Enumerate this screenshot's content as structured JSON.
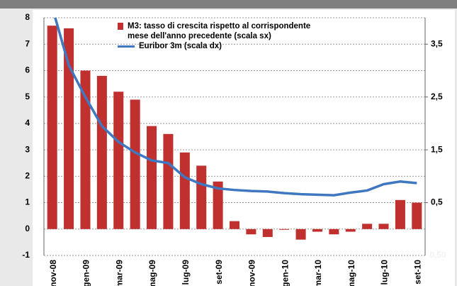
{
  "chart_data": {
    "type": "bar-line",
    "categories": [
      "nov-08",
      null,
      "gen-09",
      null,
      "mar-09",
      null,
      "mag-09",
      null,
      "lug-09",
      null,
      "set-09",
      null,
      "nov-09",
      null,
      "gen-10",
      null,
      "mar-10",
      null,
      "mag-10",
      null,
      "lug-10",
      null,
      "set-10"
    ],
    "series": [
      {
        "name": "M3: tasso di crescita rispetto al corrispondente mese dell'anno precedente (scala sx)",
        "color": "#c0302f",
        "type": "bar",
        "values": [
          7.7,
          7.6,
          6.0,
          5.8,
          5.2,
          4.9,
          3.9,
          3.6,
          2.9,
          2.4,
          1.8,
          0.3,
          -0.2,
          -0.3,
          0.0,
          -0.4,
          -0.1,
          -0.2,
          -0.1,
          0.2,
          0.2,
          1.1,
          1.0
        ]
      },
      {
        "name": "Euribor 3m (scala dx)",
        "color": "#3f78c0",
        "type": "line",
        "axis": "y2",
        "values": [
          4.2,
          3.1,
          2.5,
          1.95,
          1.65,
          1.45,
          1.3,
          1.25,
          0.98,
          0.85,
          0.77,
          0.74,
          0.72,
          0.71,
          0.68,
          0.66,
          0.65,
          0.64,
          0.69,
          0.73,
          0.85,
          0.9,
          0.87
        ]
      }
    ],
    "ylim": [
      -1,
      8
    ],
    "yticks": [
      -1,
      0,
      1,
      2,
      3,
      4,
      5,
      6,
      7,
      8
    ],
    "y2lim": [
      -0.5,
      4
    ],
    "y2ticks": [
      {
        "value": 0.5,
        "label": "0,5"
      },
      {
        "value": 1.5,
        "label": "1,5"
      },
      {
        "value": 2.5,
        "label": "2,5"
      },
      {
        "value": 3.5,
        "label": "3,5"
      }
    ],
    "annotations": [
      "0,50"
    ],
    "grid": true
  }
}
